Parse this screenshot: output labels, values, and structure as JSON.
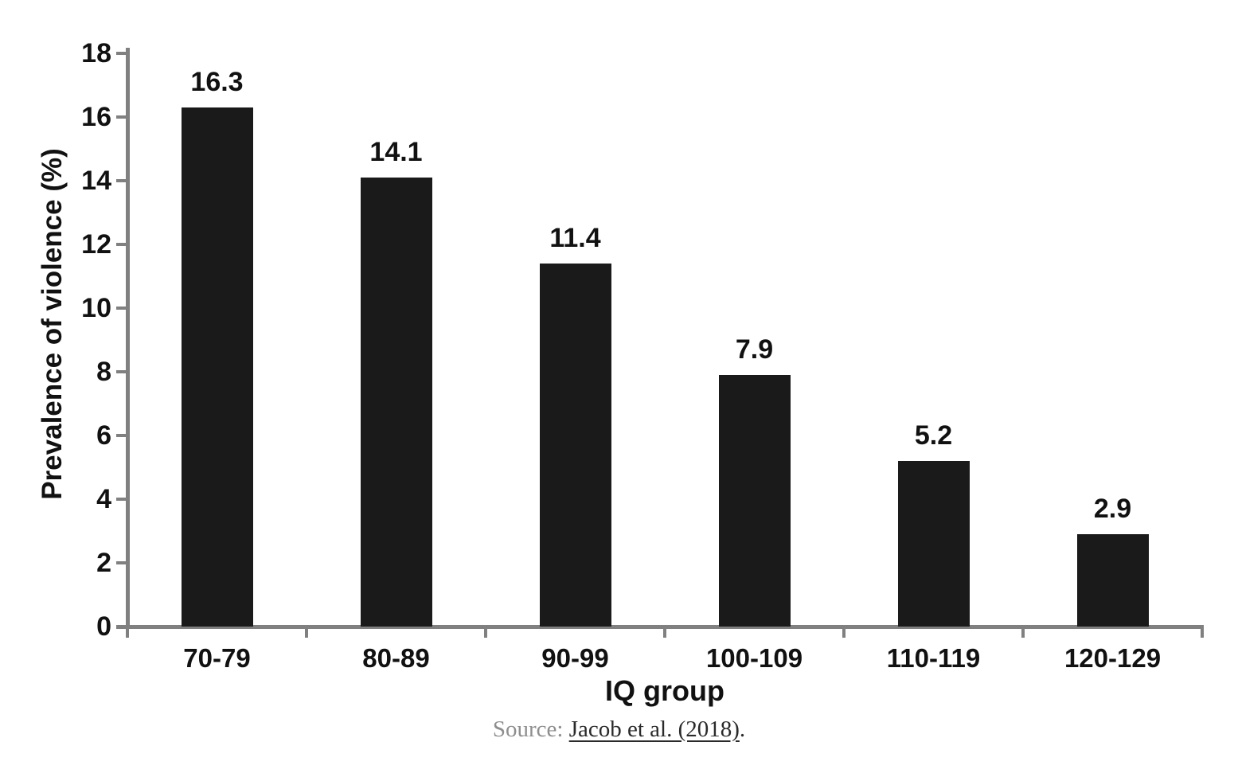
{
  "chart_data": {
    "type": "bar",
    "categories": [
      "70-79",
      "80-89",
      "90-99",
      "100-109",
      "110-119",
      "120-129"
    ],
    "values": [
      16.3,
      14.1,
      11.4,
      7.9,
      5.2,
      2.9
    ],
    "value_labels": [
      "16.3",
      "14.1",
      "11.4",
      "7.9",
      "5.2",
      "2.9"
    ],
    "title": "",
    "xlabel": "IQ group",
    "ylabel": "Prevalence of violence (%)",
    "ylim": [
      0,
      18
    ],
    "ytick_step": 2,
    "ytick_labels": [
      "0",
      "2",
      "4",
      "6",
      "8",
      "10",
      "12",
      "14",
      "16",
      "18"
    ],
    "grid": false,
    "legend": "none",
    "bar_color": "#1a1a1a",
    "axis_color": "#808080",
    "text_color": "#111111"
  },
  "source": {
    "prefix": "Source: ",
    "link_text": "Jacob et al. (2018)",
    "suffix": "."
  }
}
